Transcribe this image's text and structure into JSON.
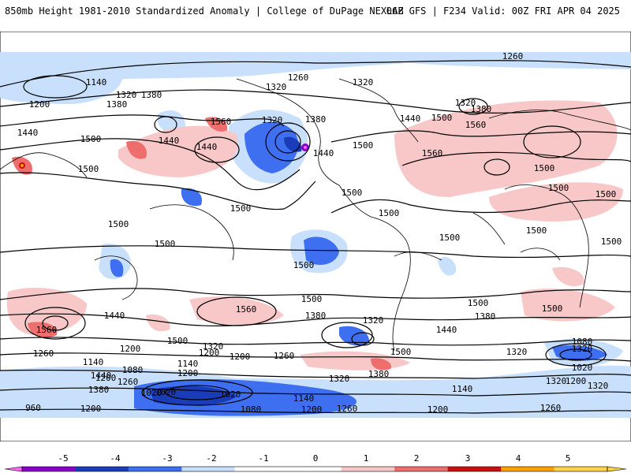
{
  "header": {
    "left_title": "850mb Height 1981-2010 Standardized Anomaly | College of DuPage NEXLAB",
    "right_title": "06Z GFS | F234 Valid: 00Z FRI APR 04 2025"
  },
  "colors": {
    "neg5": "#ff66ff",
    "neg4": "#8a00c8",
    "neg3": "#1a3cb8",
    "neg2": "#3d6ff0",
    "neg1": "#c8e0fb",
    "zero": "#ffffff",
    "pos1": "#f8c8c8",
    "pos2": "#ee6e6e",
    "pos3": "#c81010",
    "pos4": "#ffa000",
    "pos5": "#ffd24a"
  },
  "colorbar": {
    "labels": [
      "-5",
      "-4",
      "-3",
      "-2",
      "-1",
      "0",
      "1",
      "2",
      "3",
      "4",
      "5"
    ]
  },
  "contour_labels": [
    "1260",
    "1140",
    "1200",
    "1320",
    "1380",
    "1260",
    "1320",
    "1320",
    "1380",
    "1320",
    "1380",
    "1440",
    "1500",
    "1560",
    "1320",
    "1440",
    "1500",
    "1560",
    "1500",
    "1440",
    "1560",
    "1500",
    "1440",
    "1500",
    "1380",
    "1440",
    "1500",
    "1500",
    "1500",
    "1500",
    "1500",
    "1500",
    "1500",
    "1500",
    "1500",
    "1500",
    "1500",
    "1500",
    "1500",
    "1440",
    "1500",
    "1380",
    "1320",
    "1380",
    "1320",
    "1440",
    "1560",
    "1500",
    "1320",
    "1200",
    "1560",
    "1260",
    "1440",
    "1320",
    "1200",
    "1080",
    "1020",
    "1200",
    "1500",
    "1380",
    "1320",
    "1260",
    "1200",
    "1140",
    "1080",
    "1140",
    "1200",
    "1260",
    "1380",
    "1200",
    "1320",
    "1020",
    "960",
    "1020",
    "1020",
    "1080",
    "1140",
    "1200",
    "1260",
    "1200",
    "1140",
    "1260",
    "1200",
    "1320"
  ]
}
